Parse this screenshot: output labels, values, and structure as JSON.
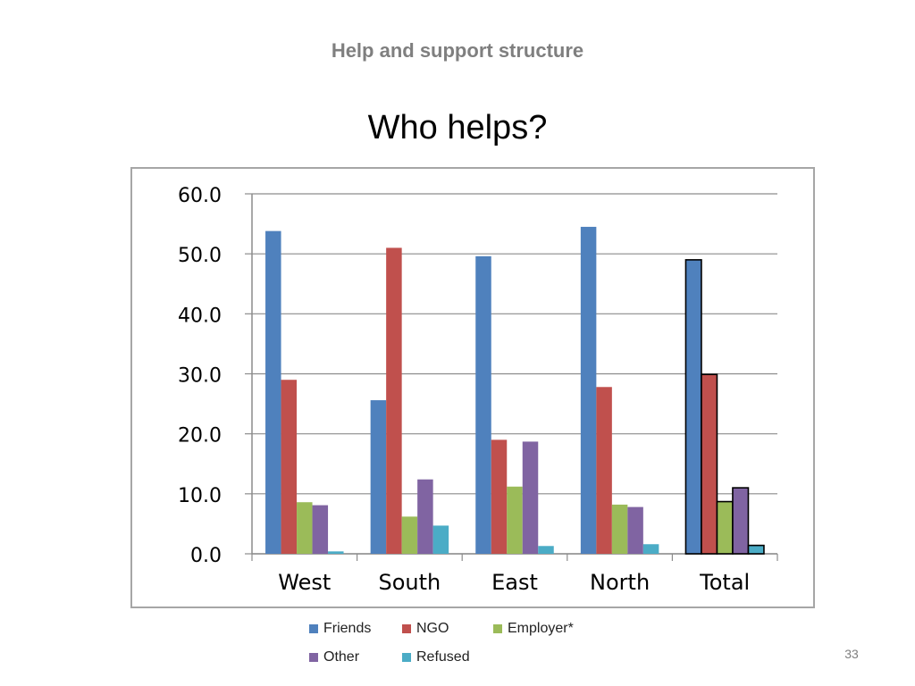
{
  "header": {
    "section": "Help and support structure"
  },
  "slide": {
    "title": "Who helps?",
    "page_number": "33"
  },
  "chart_data": {
    "type": "bar",
    "categories": [
      "West",
      "South",
      "East",
      "North",
      "Total"
    ],
    "series": [
      {
        "name": "Friends",
        "color": "#4f81bd",
        "values": [
          53.8,
          25.6,
          49.6,
          54.5,
          49.0
        ]
      },
      {
        "name": "NGO",
        "color": "#c0504d",
        "values": [
          29.0,
          51.0,
          19.0,
          27.8,
          29.9
        ]
      },
      {
        "name": "Employer*",
        "color": "#9bbb59",
        "values": [
          8.6,
          6.2,
          11.2,
          8.2,
          8.7
        ]
      },
      {
        "name": "Other",
        "color": "#8064a2",
        "values": [
          8.1,
          12.4,
          18.7,
          7.8,
          11.0
        ]
      },
      {
        "name": "Refused",
        "color": "#4bacc6",
        "values": [
          0.4,
          4.7,
          1.3,
          1.6,
          1.4
        ]
      }
    ],
    "ylim": [
      0,
      60
    ],
    "yticks": [
      "0.0",
      "10.0",
      "20.0",
      "30.0",
      "40.0",
      "50.0",
      "60.0"
    ],
    "grid": true,
    "legend_position": "bottom",
    "highlighted_category": "Total",
    "highlight_outline_color": "#000000"
  }
}
